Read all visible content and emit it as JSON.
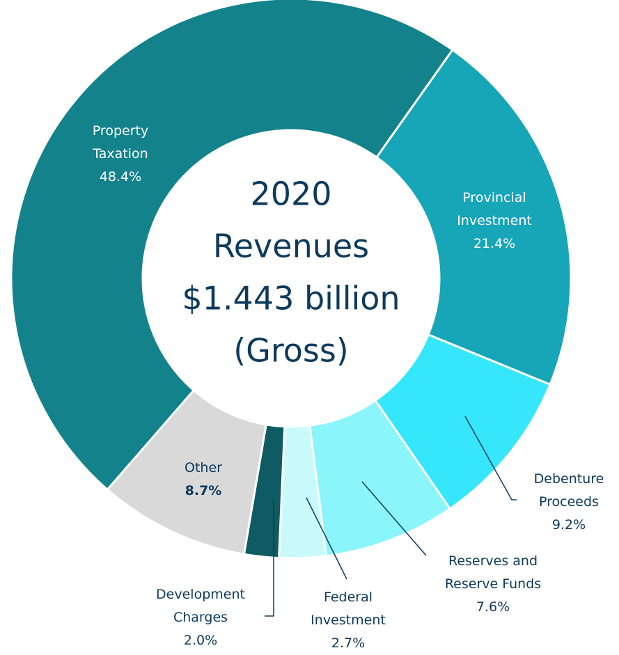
{
  "chart_data": {
    "type": "donut",
    "center_text": [
      "2020",
      "Revenues",
      "$1.443 billion",
      "(Gross)"
    ],
    "categories": [
      "Property Taxation",
      "Provincial Investment",
      "Debenture Proceeds",
      "Reserves and Reserve Funds",
      "Federal Investment",
      "Development Charges",
      "Other"
    ],
    "values": [
      48.4,
      21.4,
      9.2,
      7.6,
      2.7,
      2.0,
      8.7
    ],
    "value_labels": [
      "48.4%",
      "21.4%",
      "9.2%",
      "7.6%",
      "2.7%",
      "2.0%",
      "8.7%"
    ],
    "colors": [
      "#13828b",
      "#17a5b8",
      "#36e6fb",
      "#8af5fb",
      "#c8fafb",
      "#0e5b63",
      "#d9d9d9"
    ]
  }
}
